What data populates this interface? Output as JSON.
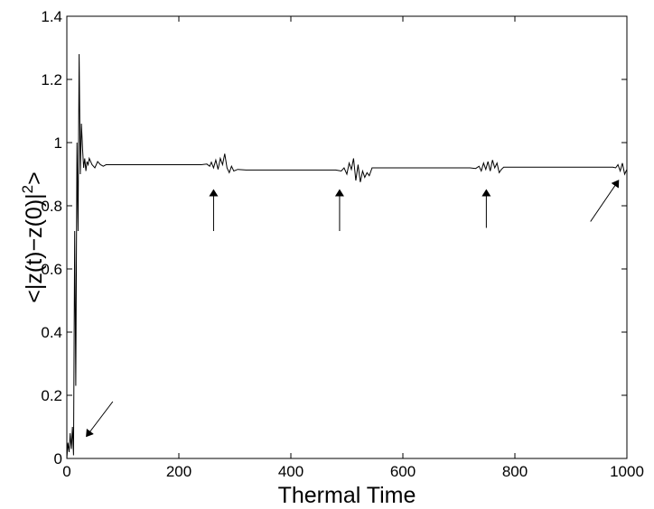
{
  "chart_data": {
    "type": "line",
    "title": "",
    "xlabel": "Thermal Time",
    "ylabel_main": "<|z(t)−z(0)|",
    "ylabel_sup": "2",
    "ylabel_end": ">",
    "xlim": [
      0,
      1000
    ],
    "ylim": [
      0,
      1.4
    ],
    "xticks": [
      0,
      200,
      400,
      600,
      800,
      1000
    ],
    "xtick_labels": [
      "0",
      "200",
      "400",
      "600",
      "800",
      "1000"
    ],
    "yticks": [
      0,
      0.2,
      0.4,
      0.6,
      0.8,
      1,
      1.2,
      1.4
    ],
    "ytick_labels": [
      "0",
      "0.2",
      "0.4",
      "0.6",
      "0.8",
      "1",
      "1.2",
      "1.4"
    ],
    "grid": false,
    "series": [
      {
        "x": [
          0,
          2,
          4,
          6,
          8,
          10,
          12,
          14,
          16,
          18,
          20,
          22,
          24,
          26,
          28,
          30,
          32,
          34,
          36,
          38,
          40,
          45,
          50,
          55,
          60,
          65,
          70,
          80,
          100,
          150,
          200,
          240,
          250,
          255,
          258,
          262,
          266,
          270,
          274,
          278,
          282,
          286,
          290,
          294,
          298,
          305,
          320,
          350,
          400,
          450,
          480,
          490,
          495,
          500,
          504,
          508,
          512,
          516,
          520,
          524,
          528,
          532,
          536,
          540,
          545,
          550,
          600,
          650,
          700,
          720,
          730,
          736,
          740,
          744,
          748,
          752,
          756,
          760,
          764,
          768,
          772,
          776,
          780,
          800,
          850,
          900,
          950,
          975,
          980,
          984,
          988,
          992,
          996,
          1000
        ],
        "y": [
          0.0,
          0.05,
          0.02,
          0.08,
          0.03,
          0.1,
          0.01,
          0.72,
          0.23,
          1.0,
          0.72,
          1.28,
          0.9,
          1.06,
          0.98,
          0.92,
          0.95,
          0.91,
          0.94,
          0.93,
          0.95,
          0.93,
          0.92,
          0.94,
          0.93,
          0.925,
          0.93,
          0.93,
          0.93,
          0.93,
          0.93,
          0.93,
          0.932,
          0.925,
          0.938,
          0.92,
          0.945,
          0.915,
          0.95,
          0.93,
          0.965,
          0.92,
          0.905,
          0.925,
          0.91,
          0.915,
          0.913,
          0.913,
          0.913,
          0.913,
          0.913,
          0.91,
          0.92,
          0.9,
          0.935,
          0.915,
          0.95,
          0.88,
          0.93,
          0.875,
          0.91,
          0.89,
          0.905,
          0.895,
          0.92,
          0.92,
          0.92,
          0.92,
          0.92,
          0.92,
          0.918,
          0.925,
          0.91,
          0.935,
          0.915,
          0.94,
          0.91,
          0.945,
          0.92,
          0.935,
          0.905,
          0.915,
          0.922,
          0.922,
          0.922,
          0.922,
          0.922,
          0.922,
          0.92,
          0.93,
          0.91,
          0.935,
          0.9,
          0.915
        ]
      }
    ],
    "annotations": [
      {
        "type": "arrow",
        "from": [
          82,
          0.18
        ],
        "to": [
          35,
          0.07
        ]
      },
      {
        "type": "arrow",
        "from": [
          262,
          0.72
        ],
        "to": [
          262,
          0.85
        ]
      },
      {
        "type": "arrow",
        "from": [
          487,
          0.72
        ],
        "to": [
          487,
          0.85
        ]
      },
      {
        "type": "arrow",
        "from": [
          749,
          0.73
        ],
        "to": [
          749,
          0.85
        ]
      },
      {
        "type": "arrow",
        "from": [
          935,
          0.75
        ],
        "to": [
          985,
          0.88
        ]
      }
    ]
  }
}
